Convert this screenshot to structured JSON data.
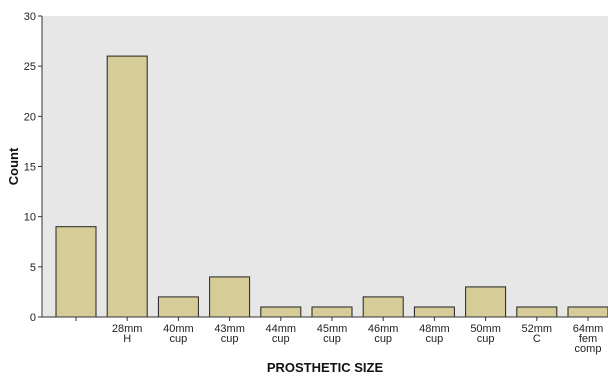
{
  "chart_data": {
    "type": "bar",
    "categories": [
      [
        ""
      ],
      [
        "28mm",
        "H"
      ],
      [
        "40mm",
        "cup"
      ],
      [
        "43mm",
        "cup"
      ],
      [
        "44mm",
        "cup"
      ],
      [
        "45mm",
        "cup"
      ],
      [
        "46mm",
        "cup"
      ],
      [
        "48mm",
        "cup"
      ],
      [
        "50mm",
        "cup"
      ],
      [
        "52mm",
        "C"
      ],
      [
        "64mm",
        "fem",
        "comp"
      ]
    ],
    "values": [
      9,
      26,
      2,
      4,
      1,
      1,
      2,
      1,
      3,
      1,
      1
    ],
    "title": "",
    "xlabel": "PROSTHETIC SIZE",
    "ylabel": "Count",
    "ylim": [
      0,
      30
    ],
    "yticks": [
      0,
      5,
      10,
      15,
      20,
      25,
      30
    ],
    "grid": false,
    "legend": "none",
    "colors": {
      "plot_background": "#e7e7e7",
      "bar_fill": "#d6cc98",
      "bar_stroke": "#222222",
      "axis": "#333333"
    }
  }
}
